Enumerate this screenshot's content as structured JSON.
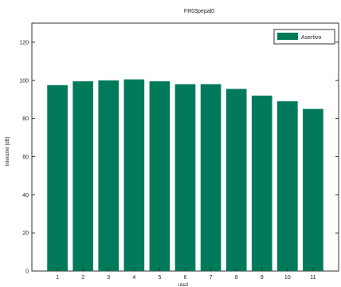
{
  "chart_data": {
    "type": "bar",
    "title": "FR03pepal0",
    "xlabel": "ulazi",
    "ylabel": "Intenzitet [dB]",
    "categories": [
      "1",
      "2",
      "3",
      "4",
      "5",
      "6",
      "7",
      "8",
      "9",
      "10",
      "11"
    ],
    "series": [
      {
        "name": "Asertivo",
        "color": "#007a5a",
        "values": [
          97.5,
          99.5,
          100,
          100.5,
          99.5,
          98,
          98,
          95.5,
          92,
          89,
          85
        ]
      }
    ],
    "ylim": [
      0,
      130
    ],
    "yticks": [
      0,
      20,
      40,
      60,
      80,
      100,
      120
    ],
    "legend": "top-right",
    "grid": false
  }
}
